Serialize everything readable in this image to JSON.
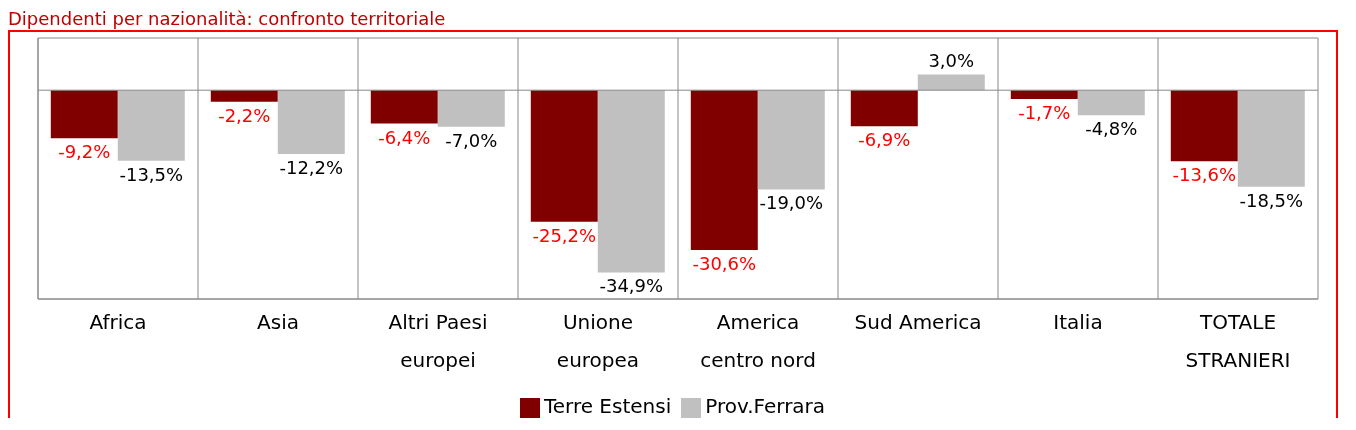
{
  "chart_data": {
    "type": "bar",
    "title": "Dipendenti per nazionalità: confronto territoriale",
    "categories": [
      "Africa",
      "Asia",
      "Altri Paesi europei",
      "Unione europea",
      "America centro nord",
      "Sud America",
      "Italia",
      "TOTALE STRANIERI"
    ],
    "series": [
      {
        "name": "Terre Estensi",
        "color": "#800000",
        "values": [
          -9.2,
          -2.2,
          -6.4,
          -25.2,
          -30.6,
          -6.9,
          -1.7,
          -13.6
        ],
        "value_labels": [
          "-9,2%",
          "-2,2%",
          "-6,4%",
          "-25,2%",
          "-30,6%",
          "-6,9%",
          "-1,7%",
          "-13,6%"
        ]
      },
      {
        "name": "Prov.Ferrara",
        "color": "#c0c0c0",
        "values": [
          -13.5,
          -12.2,
          -7.0,
          -34.9,
          -19.0,
          3.0,
          -4.8,
          -18.5
        ],
        "value_labels": [
          "-13,5%",
          "-12,2%",
          "-7,0%",
          "-34,9%",
          "-19,0%",
          "3,0%",
          "-4,8%",
          "-18,5%"
        ]
      }
    ],
    "ylim": [
      -40,
      10
    ],
    "tick_labels": "x",
    "grid": true,
    "legend": "bottom"
  }
}
